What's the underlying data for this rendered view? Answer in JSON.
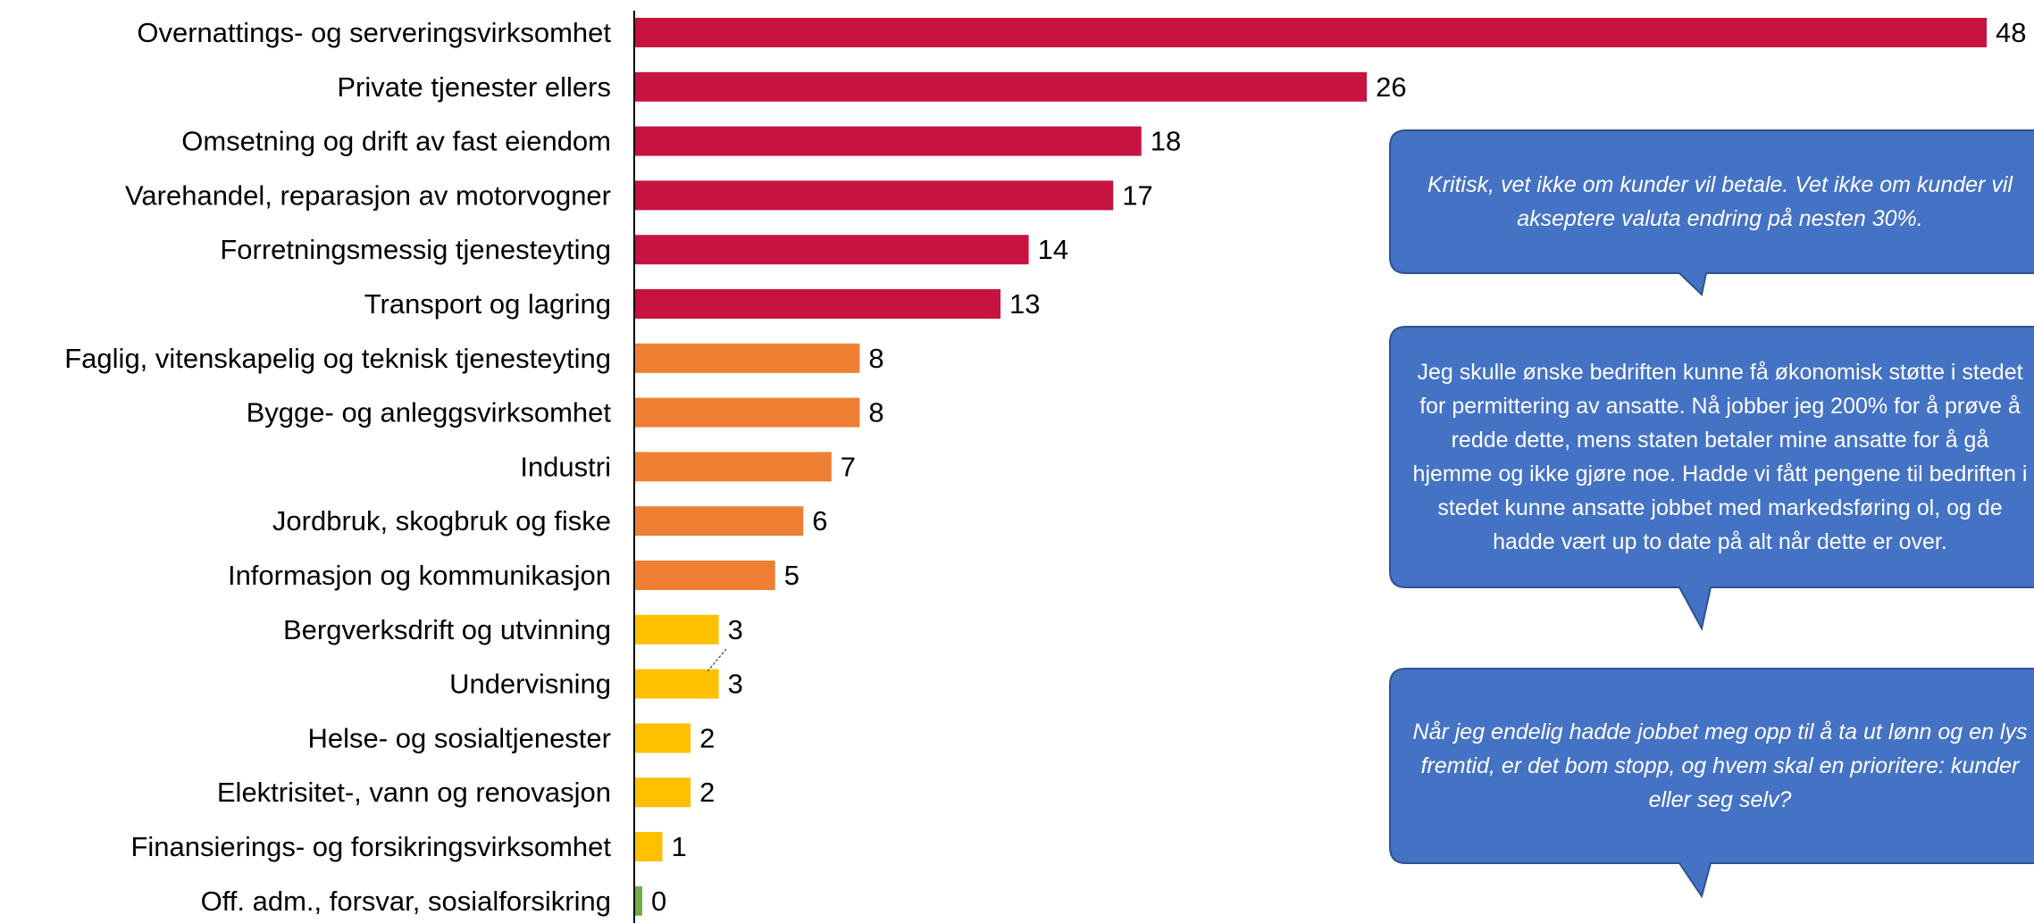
{
  "chart_data": {
    "type": "bar",
    "orientation": "horizontal",
    "categories": [
      "Overnattings- og serveringsvirksomhet",
      "Private tjenester ellers",
      "Omsetning og drift av fast eiendom",
      "Varehandel, reparasjon av motorvogner",
      "Forretningsmessig tjenesteyting",
      "Transport og lagring",
      "Faglig, vitenskapelig og teknisk tjenesteyting",
      "Bygge- og anleggsvirksomhet",
      "Industri",
      "Jordbruk, skogbruk og fiske",
      "Informasjon og kommunikasjon",
      "Bergverksdrift og utvinning",
      "Undervisning",
      "Helse- og sosialtjenester",
      "Elektrisitet-, vann og renovasjon",
      "Finansierings- og forsikringsvirksomhet",
      "Off. adm., forsvar, sosialforsikring"
    ],
    "values": [
      48,
      26,
      18,
      17,
      14,
      13,
      8,
      8,
      7,
      6,
      5,
      3,
      3,
      2,
      2,
      1,
      0
    ],
    "value_labels": [
      "48",
      "26",
      "18",
      "17",
      "14",
      "13",
      "8",
      "8",
      "7",
      "6",
      "5",
      "3",
      "3",
      "2",
      "2",
      "1",
      "0"
    ],
    "colors": [
      "#C8123F",
      "#C8123F",
      "#C8123F",
      "#C8123F",
      "#C8123F",
      "#C8123F",
      "#EF7F32",
      "#EF7F32",
      "#EF7F32",
      "#EF7F32",
      "#EF7F32",
      "#FFC000",
      "#FFC000",
      "#FFC000",
      "#FFC000",
      "#FFC000",
      "#70AD47"
    ],
    "xlim": [
      0,
      48
    ],
    "grid": false,
    "legend": "none"
  },
  "callouts": [
    {
      "text": "Kritisk, vet ikke om kunder vil betale. Vet ikke om kunder vil akseptere valuta endring på nesten 30%.",
      "italic": true
    },
    {
      "text": "Jeg skulle ønske bedriften kunne få økonomisk støtte i stedet for permittering av ansatte. Nå jobber jeg 200% for å prøve å redde dette, mens staten betaler mine ansatte for å gå hjemme og ikke gjøre noe. Hadde vi fått pengene til bedriften i stedet kunne ansatte jobbet med markedsføring ol, og de hadde vært up to date på alt når dette er over.",
      "italic": false
    },
    {
      "text": "Når jeg endelig hadde jobbet meg opp til å ta ut lønn og en lys fremtid, er det bom stopp, og hvem skal en prioritere: kunder eller seg selv?",
      "italic": true
    }
  ],
  "colors": {
    "callout_fill": "#4472C4",
    "callout_border": "#2F528F",
    "axis_line": "#000000"
  }
}
